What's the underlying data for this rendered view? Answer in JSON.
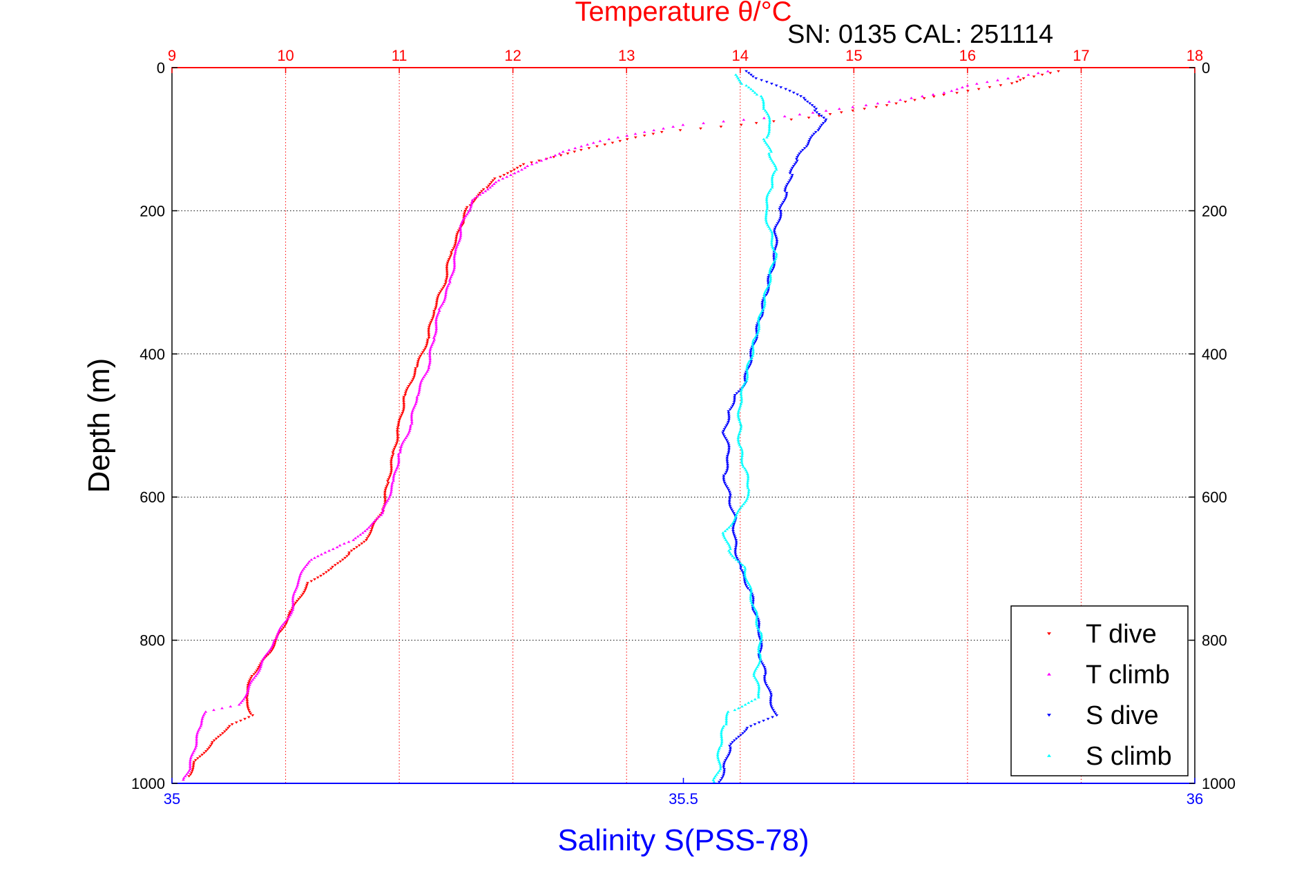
{
  "chart_data": {
    "type": "scatter",
    "title": "Temperature θ/°C",
    "annotation": "SN: 0135  CAL: 251114",
    "xlabel": "Salinity S(PSS-78)",
    "ylabel": "Depth (m)",
    "x_top": {
      "label": "Temperature θ/°C",
      "range": [
        9,
        18
      ],
      "ticks": [
        "9",
        "10",
        "11",
        "12",
        "13",
        "14",
        "15",
        "16",
        "17",
        "18"
      ],
      "color": "#ff0000"
    },
    "x_bottom": {
      "label": "Salinity S(PSS-78)",
      "range": [
        35,
        36
      ],
      "ticks": [
        "35",
        "35.5",
        "36"
      ],
      "color": "#0000ff"
    },
    "y": {
      "label": "Depth (m)",
      "range": [
        0,
        1000
      ],
      "reversed": true,
      "ticks": [
        "0",
        "200",
        "400",
        "600",
        "800",
        "1000"
      ]
    },
    "grid": true,
    "legend_position": "bottom-right",
    "series": [
      {
        "name": "T dive",
        "axis": "temperature",
        "color": "#ff0000",
        "marker": "triangle-down",
        "points": [
          [
            16.8,
            5
          ],
          [
            16.5,
            15
          ],
          [
            16.4,
            22
          ],
          [
            15.8,
            38
          ],
          [
            15.2,
            55
          ],
          [
            14.6,
            70
          ],
          [
            14.0,
            80
          ],
          [
            13.3,
            90
          ],
          [
            13.0,
            100
          ],
          [
            12.6,
            115
          ],
          [
            12.1,
            135
          ],
          [
            11.85,
            155
          ],
          [
            11.75,
            170
          ],
          [
            11.6,
            195
          ],
          [
            11.55,
            220
          ],
          [
            11.45,
            260
          ],
          [
            11.4,
            300
          ],
          [
            11.3,
            340
          ],
          [
            11.25,
            380
          ],
          [
            11.15,
            420
          ],
          [
            11.05,
            460
          ],
          [
            11.0,
            500
          ],
          [
            10.95,
            540
          ],
          [
            10.9,
            580
          ],
          [
            10.85,
            620
          ],
          [
            10.7,
            660
          ],
          [
            10.55,
            680
          ],
          [
            10.4,
            700
          ],
          [
            10.2,
            720
          ],
          [
            10.05,
            760
          ],
          [
            9.95,
            790
          ],
          [
            9.85,
            820
          ],
          [
            9.7,
            850
          ],
          [
            9.65,
            880
          ],
          [
            9.7,
            905
          ],
          [
            9.5,
            920
          ],
          [
            9.35,
            945
          ],
          [
            9.2,
            970
          ],
          [
            9.15,
            990
          ]
        ]
      },
      {
        "name": "T climb",
        "axis": "temperature",
        "color": "#ff00ff",
        "marker": "triangle-up",
        "points": [
          [
            16.7,
            5
          ],
          [
            16.0,
            25
          ],
          [
            15.8,
            35
          ],
          [
            15.0,
            55
          ],
          [
            14.4,
            68
          ],
          [
            13.5,
            80
          ],
          [
            13.0,
            95
          ],
          [
            12.7,
            105
          ],
          [
            12.4,
            120
          ],
          [
            12.1,
            140
          ],
          [
            11.85,
            160
          ],
          [
            11.65,
            185
          ],
          [
            11.55,
            220
          ],
          [
            11.5,
            260
          ],
          [
            11.45,
            300
          ],
          [
            11.35,
            340
          ],
          [
            11.3,
            380
          ],
          [
            11.25,
            420
          ],
          [
            11.15,
            460
          ],
          [
            11.1,
            500
          ],
          [
            11.0,
            540
          ],
          [
            10.95,
            580
          ],
          [
            10.85,
            625
          ],
          [
            10.6,
            660
          ],
          [
            10.45,
            670
          ],
          [
            10.2,
            690
          ],
          [
            10.1,
            720
          ],
          [
            10.05,
            760
          ],
          [
            9.9,
            800
          ],
          [
            9.8,
            830
          ],
          [
            9.7,
            860
          ],
          [
            9.6,
            890
          ],
          [
            9.3,
            900
          ],
          [
            9.25,
            920
          ],
          [
            9.2,
            950
          ],
          [
            9.15,
            980
          ],
          [
            9.1,
            995
          ]
        ]
      },
      {
        "name": "S dive",
        "axis": "salinity",
        "color": "#0000ff",
        "marker": "triangle-down",
        "points": [
          [
            35.56,
            5
          ],
          [
            35.57,
            15
          ],
          [
            35.6,
            30
          ],
          [
            35.62,
            45
          ],
          [
            35.63,
            60
          ],
          [
            35.64,
            75
          ],
          [
            35.63,
            90
          ],
          [
            35.62,
            110
          ],
          [
            35.61,
            130
          ],
          [
            35.605,
            150
          ],
          [
            35.6,
            175
          ],
          [
            35.595,
            200
          ],
          [
            35.59,
            230
          ],
          [
            35.59,
            260
          ],
          [
            35.585,
            290
          ],
          [
            35.58,
            320
          ],
          [
            35.575,
            350
          ],
          [
            35.57,
            380
          ],
          [
            35.565,
            410
          ],
          [
            35.56,
            440
          ],
          [
            35.55,
            460
          ],
          [
            35.545,
            480
          ],
          [
            35.54,
            510
          ],
          [
            35.545,
            540
          ],
          [
            35.54,
            570
          ],
          [
            35.545,
            600
          ],
          [
            35.55,
            630
          ],
          [
            35.55,
            660
          ],
          [
            35.555,
            700
          ],
          [
            35.565,
            730
          ],
          [
            35.57,
            760
          ],
          [
            35.575,
            790
          ],
          [
            35.575,
            820
          ],
          [
            35.58,
            850
          ],
          [
            35.585,
            880
          ],
          [
            35.59,
            905
          ],
          [
            35.56,
            925
          ],
          [
            35.545,
            950
          ],
          [
            35.54,
            980
          ],
          [
            35.535,
            998
          ]
        ]
      },
      {
        "name": "S climb",
        "axis": "salinity",
        "color": "#00ffff",
        "marker": "triangle-up",
        "points": [
          [
            35.55,
            10
          ],
          [
            35.56,
            25
          ],
          [
            35.575,
            40
          ],
          [
            35.58,
            60
          ],
          [
            35.585,
            80
          ],
          [
            35.58,
            100
          ],
          [
            35.585,
            120
          ],
          [
            35.59,
            145
          ],
          [
            35.585,
            170
          ],
          [
            35.58,
            200
          ],
          [
            35.585,
            230
          ],
          [
            35.59,
            260
          ],
          [
            35.585,
            290
          ],
          [
            35.58,
            320
          ],
          [
            35.575,
            350
          ],
          [
            35.57,
            380
          ],
          [
            35.565,
            410
          ],
          [
            35.56,
            440
          ],
          [
            35.555,
            470
          ],
          [
            35.555,
            500
          ],
          [
            35.555,
            530
          ],
          [
            35.56,
            560
          ],
          [
            35.565,
            590
          ],
          [
            35.555,
            620
          ],
          [
            35.54,
            650
          ],
          [
            35.545,
            675
          ],
          [
            35.56,
            700
          ],
          [
            35.565,
            730
          ],
          [
            35.57,
            760
          ],
          [
            35.575,
            790
          ],
          [
            35.575,
            820
          ],
          [
            35.57,
            850
          ],
          [
            35.575,
            880
          ],
          [
            35.545,
            900
          ],
          [
            35.54,
            920
          ],
          [
            35.535,
            950
          ],
          [
            35.535,
            980
          ],
          [
            35.53,
            998
          ]
        ]
      }
    ]
  }
}
